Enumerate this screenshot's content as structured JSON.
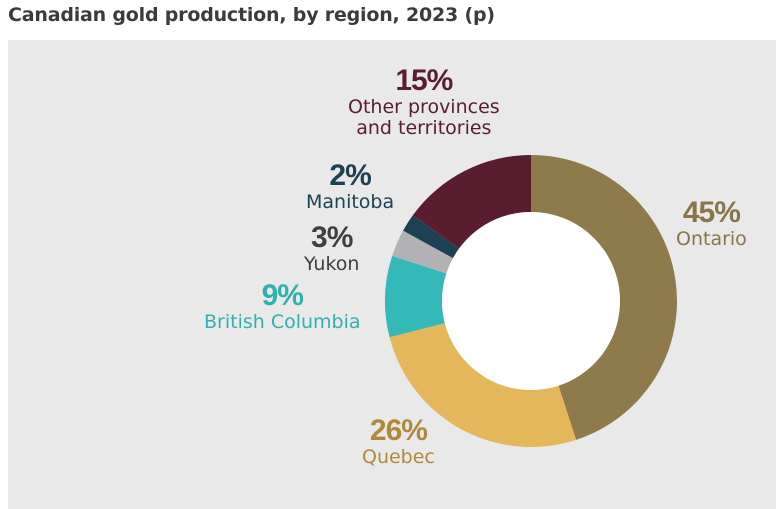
{
  "chart_data": {
    "type": "pie",
    "title": "Canadian gold production, by region, 2023 (p)",
    "series": [
      {
        "name": "Ontario",
        "value": 45,
        "label": "45%",
        "color": "#8f7a4c"
      },
      {
        "name": "Quebec",
        "value": 26,
        "label": "26%",
        "color": "#e4b75b"
      },
      {
        "name": "British Columbia",
        "value": 9,
        "label": "9%",
        "color": "#35b8b8"
      },
      {
        "name": "Yukon",
        "value": 3,
        "label": "3%",
        "color": "#b2b2b4"
      },
      {
        "name": "Manitoba",
        "value": 2,
        "label": "2%",
        "color": "#1c4152"
      },
      {
        "name": "Other provinces and territories",
        "value": 15,
        "label": "15%",
        "color": "#5a1d30",
        "label_lines": [
          "Other provinces",
          "and territories"
        ]
      }
    ],
    "label_colors": {
      "Ontario": "#8a7548",
      "Quebec": "#b08a3a",
      "British Columbia": "#2fb1b1",
      "Yukon": "#3f3f3f",
      "Manitoba": "#1c4152",
      "Other provinces and territories": "#5a1d30"
    }
  }
}
